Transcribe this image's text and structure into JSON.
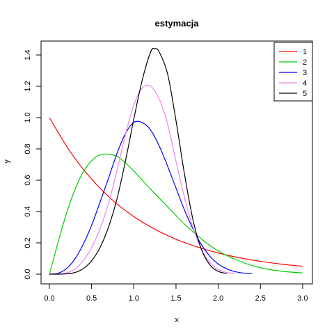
{
  "chart_data": {
    "type": "line",
    "title": "estymacja",
    "xlabel": "x",
    "ylabel": "y",
    "xlim": [
      0,
      3
    ],
    "ylim": [
      0,
      1.45
    ],
    "xticks": [
      0.0,
      0.5,
      1.0,
      1.5,
      2.0,
      2.5,
      3.0
    ],
    "xtick_labels": [
      "0.0",
      "0.5",
      "1.0",
      "1.5",
      "2.0",
      "2.5",
      "3.0"
    ],
    "yticks": [
      0.0,
      0.2,
      0.4,
      0.6,
      0.8,
      1.0,
      1.2,
      1.4
    ],
    "ytick_labels": [
      "0.0",
      "0.2",
      "0.4",
      "0.6",
      "0.8",
      "1.0",
      "1.2",
      "1.4"
    ],
    "legend_position": "top-right",
    "series": [
      {
        "name": "1",
        "color": "#ff0000",
        "x": [
          0,
          0.25,
          0.5,
          0.75,
          1.0,
          1.25,
          1.5,
          1.75,
          2.0,
          2.25,
          2.5,
          2.75,
          3.0
        ],
        "y": [
          1.0,
          0.779,
          0.607,
          0.472,
          0.368,
          0.287,
          0.223,
          0.174,
          0.135,
          0.105,
          0.082,
          0.064,
          0.05
        ]
      },
      {
        "name": "2",
        "color": "#00cd00",
        "x": [
          0,
          0.1,
          0.2,
          0.3,
          0.4,
          0.5,
          0.6,
          0.7,
          0.8,
          0.9,
          1.0,
          1.2,
          1.4,
          1.6,
          1.8,
          2.0,
          2.2,
          2.4,
          2.6,
          2.8,
          3.0
        ],
        "y": [
          0,
          0.198,
          0.384,
          0.536,
          0.652,
          0.724,
          0.763,
          0.766,
          0.753,
          0.711,
          0.658,
          0.542,
          0.431,
          0.32,
          0.225,
          0.148,
          0.095,
          0.055,
          0.03,
          0.016,
          0.008
        ]
      },
      {
        "name": "3",
        "color": "#0000ff",
        "x": [
          0,
          0.1,
          0.2,
          0.3,
          0.4,
          0.5,
          0.6,
          0.7,
          0.8,
          0.9,
          1.0,
          1.1,
          1.2,
          1.3,
          1.4,
          1.5,
          1.6,
          1.7,
          1.8,
          1.9,
          2.0,
          2.1,
          2.2,
          2.3,
          2.4
        ],
        "y": [
          0,
          0.005,
          0.034,
          0.095,
          0.19,
          0.312,
          0.46,
          0.612,
          0.77,
          0.897,
          0.97,
          0.968,
          0.92,
          0.82,
          0.69,
          0.55,
          0.41,
          0.29,
          0.19,
          0.115,
          0.065,
          0.034,
          0.016,
          0.007,
          0.003
        ]
      },
      {
        "name": "4",
        "color": "#ee82ee",
        "x": [
          0,
          0.1,
          0.2,
          0.3,
          0.4,
          0.5,
          0.6,
          0.7,
          0.8,
          0.9,
          1.0,
          1.1,
          1.2,
          1.3,
          1.4,
          1.5,
          1.6,
          1.7,
          1.8,
          1.9,
          2.0,
          2.1,
          2.2
        ],
        "y": [
          0,
          0.001,
          0.008,
          0.032,
          0.085,
          0.17,
          0.29,
          0.45,
          0.66,
          0.89,
          1.08,
          1.19,
          1.2,
          1.12,
          0.96,
          0.72,
          0.49,
          0.3,
          0.16,
          0.075,
          0.03,
          0.011,
          0.004
        ]
      },
      {
        "name": "5",
        "color": "#000000",
        "x": [
          0,
          0.1,
          0.2,
          0.3,
          0.4,
          0.5,
          0.6,
          0.7,
          0.8,
          0.9,
          1.0,
          1.1,
          1.2,
          1.25,
          1.3,
          1.4,
          1.5,
          1.6,
          1.7,
          1.8,
          1.9,
          2.0,
          2.1
        ],
        "y": [
          0,
          0,
          0.002,
          0.01,
          0.035,
          0.085,
          0.17,
          0.3,
          0.48,
          0.72,
          0.99,
          1.24,
          1.42,
          1.44,
          1.42,
          1.28,
          0.98,
          0.64,
          0.35,
          0.16,
          0.06,
          0.018,
          0.004
        ]
      }
    ]
  }
}
